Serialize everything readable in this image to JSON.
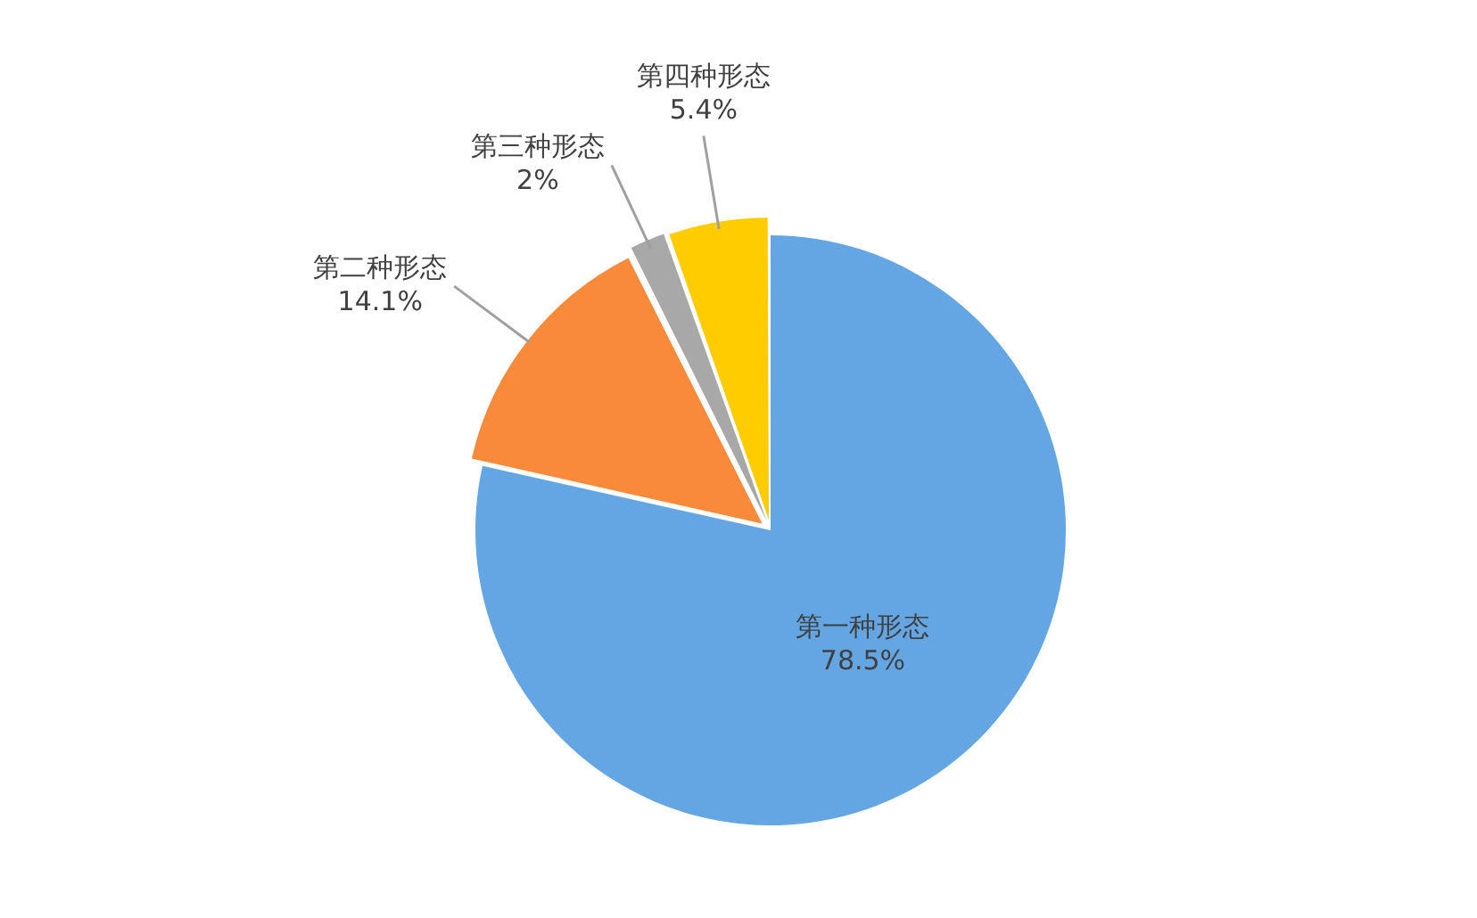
{
  "chart_data": {
    "type": "pie",
    "categories": [
      "第一种形态",
      "第二种形态",
      "第三种形态",
      "第四种形态"
    ],
    "values": [
      78.5,
      14.1,
      2,
      5.4
    ],
    "colors": [
      "#64a6e4",
      "#f98a3a",
      "#a8a8a8",
      "#ffcc00"
    ],
    "value_labels": [
      "78.5%",
      "14.1%",
      "2%",
      "5.4%"
    ]
  }
}
